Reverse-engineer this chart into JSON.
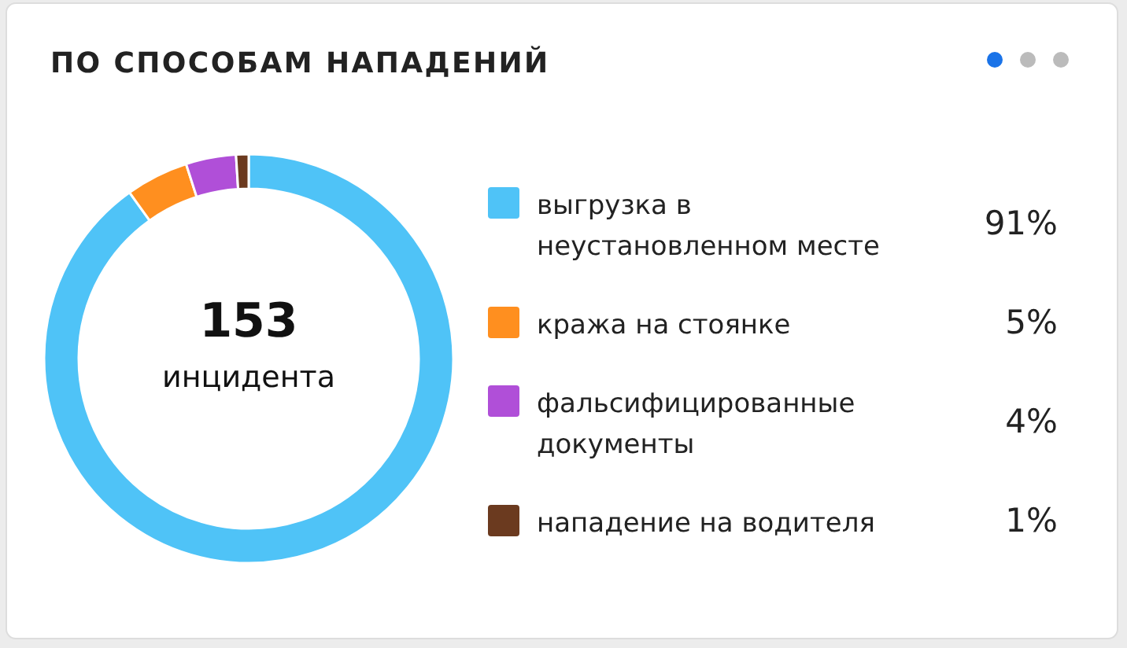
{
  "chart_data": {
    "type": "donut",
    "title": "ПО СПОСОБАМ НАПАДЕНИЙ",
    "categories": [
      "выгрузка в неустановленном месте",
      "кража на стоянке",
      "фальсифицированные документы",
      "нападение на водителя"
    ],
    "values": [
      91,
      5,
      4,
      1
    ],
    "colors": [
      "#4fc3f7",
      "#ff8f1f",
      "#b04fd8",
      "#6b3a1f"
    ],
    "value_labels": [
      "91%",
      "5%",
      "4%",
      "1%"
    ],
    "annotations": [
      "153",
      "инцидента"
    ],
    "legend": "right"
  }
}
